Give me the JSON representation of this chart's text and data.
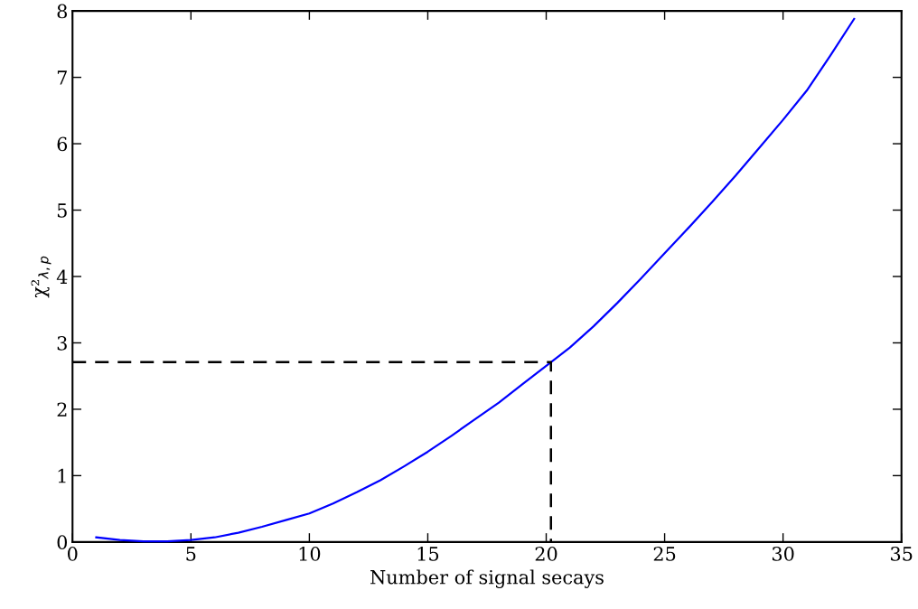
{
  "chart_data": {
    "type": "line",
    "xlabel": "Number of signal secays",
    "ylabel": "χ²$_{λ,p}$",
    "xlim": [
      0,
      35
    ],
    "xticks": [
      0,
      5,
      10,
      15,
      20,
      25,
      30,
      35
    ],
    "ylim": [
      0,
      8
    ],
    "yticks": [
      0,
      1,
      2,
      3,
      4,
      5,
      6,
      7,
      8
    ],
    "grid": false,
    "legend": false,
    "series": [
      {
        "color": "#0000ff",
        "line_style": "solid",
        "x": [
          1,
          2,
          3,
          3.5,
          4,
          5,
          6,
          7,
          8,
          9,
          10,
          11,
          12,
          13,
          14,
          15,
          16,
          17,
          18,
          19,
          20.2,
          21,
          22,
          23,
          24,
          25,
          26,
          27,
          28,
          29,
          30,
          31,
          32,
          33
        ],
        "values": [
          0.07,
          0.03,
          0.01,
          0.01,
          0.01,
          0.03,
          0.07,
          0.14,
          0.23,
          0.33,
          0.43,
          0.58,
          0.75,
          0.93,
          1.14,
          1.36,
          1.6,
          1.85,
          2.1,
          2.38,
          2.71,
          2.93,
          3.25,
          3.6,
          3.97,
          4.35,
          4.73,
          5.12,
          5.52,
          5.94,
          6.36,
          6.8,
          7.33,
          7.88
        ]
      },
      {
        "color": "#000000",
        "line_style": "dashed",
        "x": [
          0,
          20.2,
          20.2
        ],
        "values": [
          2.71,
          2.71,
          0
        ]
      }
    ]
  }
}
